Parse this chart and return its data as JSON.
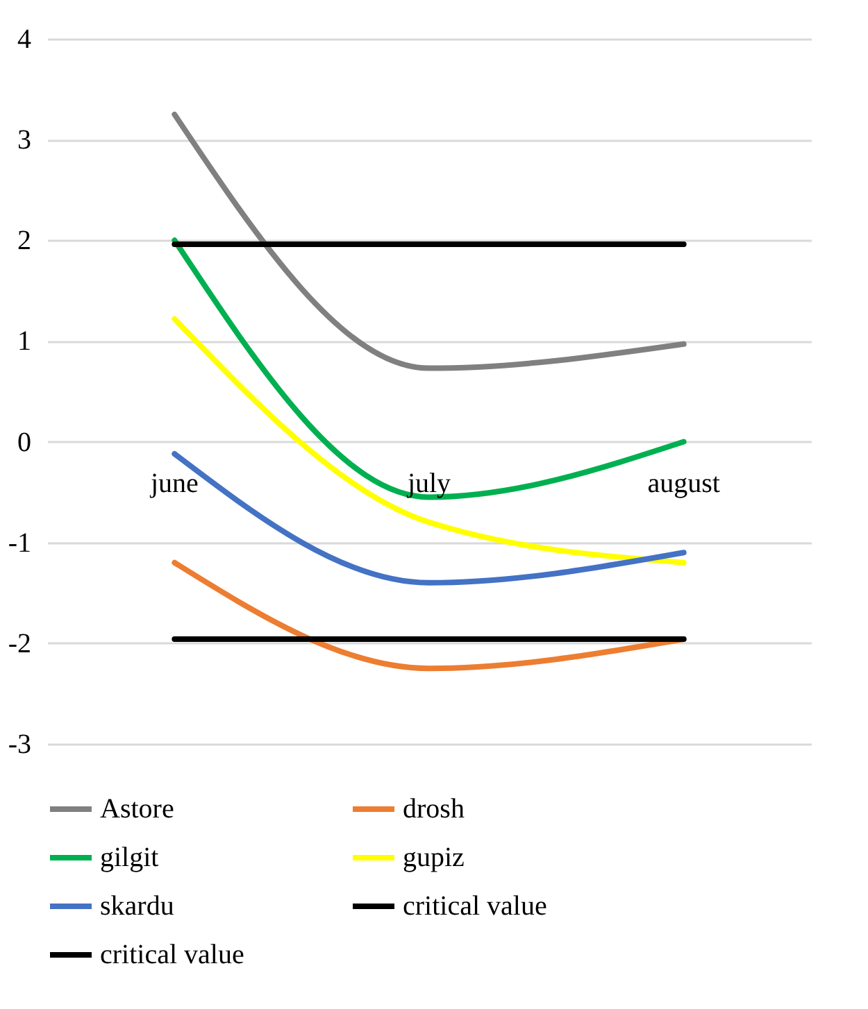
{
  "chart_data": {
    "type": "line",
    "categories": [
      "june",
      "july",
      "august"
    ],
    "series": [
      {
        "name": "Astore",
        "color": "#808080",
        "values": [
          3.25,
          0.73,
          0.97
        ]
      },
      {
        "name": "drosh",
        "color": "#ed7d31",
        "values": [
          -1.2,
          -2.25,
          -1.96
        ]
      },
      {
        "name": "gilgit",
        "color": "#00b050",
        "values": [
          2.0,
          -0.55,
          0.0
        ]
      },
      {
        "name": "gupiz",
        "color": "#ffff00",
        "values": [
          1.22,
          -0.8,
          -1.2
        ]
      },
      {
        "name": "skardu",
        "color": "#4472c4",
        "values": [
          -0.12,
          -1.4,
          -1.1
        ]
      },
      {
        "name": "critical value",
        "color": "#000000",
        "values": [
          1.96,
          1.96,
          1.96
        ]
      },
      {
        "name": "critical value",
        "color": "#000000",
        "values": [
          -1.96,
          -1.96,
          -1.96
        ]
      }
    ],
    "ylim": [
      -3,
      4
    ],
    "yticks": [
      -3,
      -2,
      -1,
      0,
      1,
      2,
      3,
      4
    ],
    "grid": "y",
    "legend": "bottom",
    "marker": "none",
    "line_style": "solid"
  }
}
